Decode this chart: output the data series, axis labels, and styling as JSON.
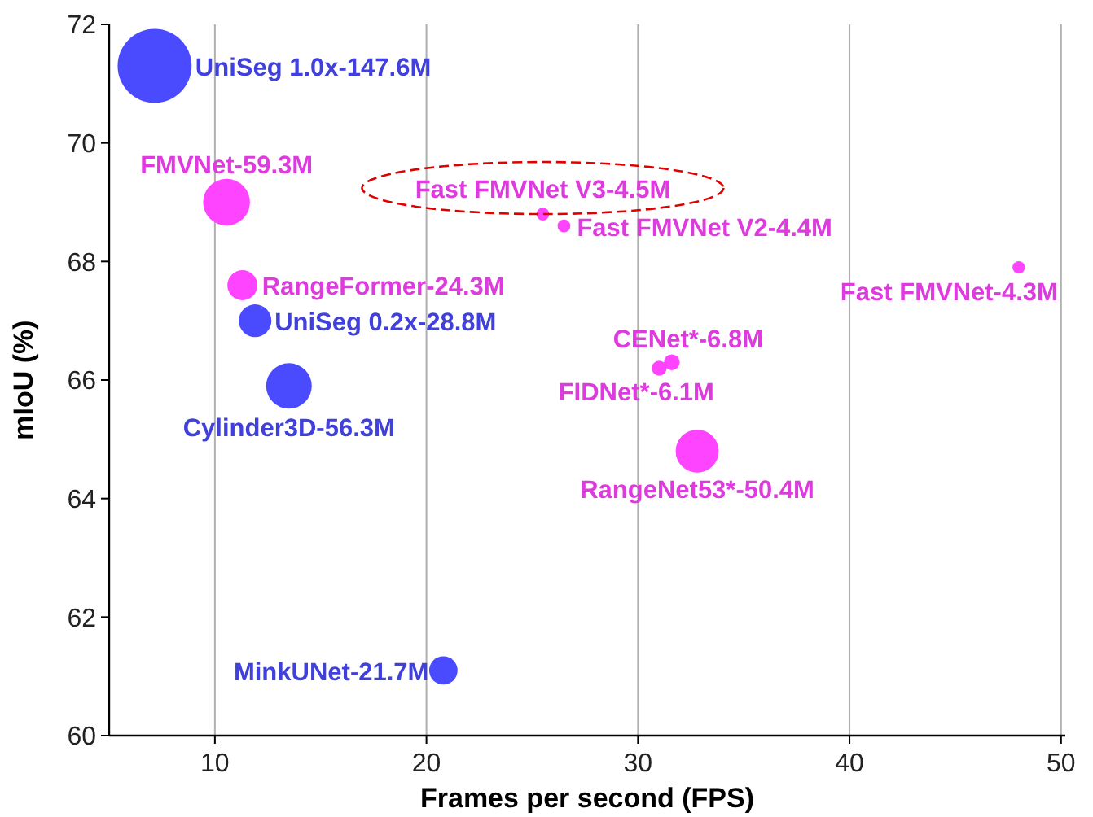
{
  "chart_data": {
    "type": "bubble",
    "xlabel": "Frames per second (FPS)",
    "ylabel": "mIoU (%)",
    "x": [
      7.15,
      10.55,
      11.3,
      11.9,
      13.5,
      20.8,
      32.8,
      31.6,
      31.0,
      25.5,
      26.5,
      48.0
    ],
    "values": [
      71.3,
      69.0,
      67.6,
      67.0,
      65.9,
      61.1,
      64.8,
      66.3,
      66.2,
      68.8,
      68.6,
      67.9
    ],
    "sizes": [
      1,
      0.4,
      0.165,
      0.195,
      0.38,
      0.147,
      0.34,
      0.046,
      0.041,
      0.03,
      0.03,
      0.029
    ],
    "colors": [
      "#4a4aff",
      "#ff44ff",
      "#ff44ff",
      "#4a4aff",
      "#4a4aff",
      "#4a4aff",
      "#ff44ff",
      "#ff44ff",
      "#ff44ff",
      "#ff44ff",
      "#ff44ff",
      "#ff44ff"
    ],
    "annotations": [
      {
        "text": "UniSeg 1.0x-147.6M",
        "x": 7.15,
        "y": 71.3
      },
      {
        "text": "FMVNet-59.3M",
        "x": 10.55,
        "y": 69.0
      },
      {
        "text": "RangeFormer-24.3M",
        "x": 11.3,
        "y": 67.6
      },
      {
        "text": "UniSeg 0.2x-28.8M",
        "x": 11.9,
        "y": 67.0
      },
      {
        "text": "Cylinder3D-56.3M",
        "x": 13.5,
        "y": 65.9
      },
      {
        "text": "MinkUNet-21.7M",
        "x": 20.8,
        "y": 61.1
      },
      {
        "text": "RangeNet53*-50.4M",
        "x": 32.8,
        "y": 64.8
      },
      {
        "text": "CENet*-6.8M",
        "x": 31.6,
        "y": 66.3
      },
      {
        "text": "FIDNet*-6.1M",
        "x": 31.0,
        "y": 66.2
      },
      {
        "text": "Fast FMVNet V3-4.5M",
        "x": 25.5,
        "y": 68.8
      },
      {
        "text": "Fast FMVNet V2-4.4M",
        "x": 26.5,
        "y": 68.6
      },
      {
        "text": "Fast FMVNet-4.3M",
        "x": 48.0,
        "y": 67.9
      }
    ],
    "xlim": [
      5,
      50.2
    ],
    "ylim": [
      60,
      72
    ],
    "xticks": [
      10,
      20,
      30,
      40,
      50
    ],
    "yticks": [
      60,
      62,
      64,
      66,
      68,
      70,
      72
    ],
    "grid": "x"
  }
}
